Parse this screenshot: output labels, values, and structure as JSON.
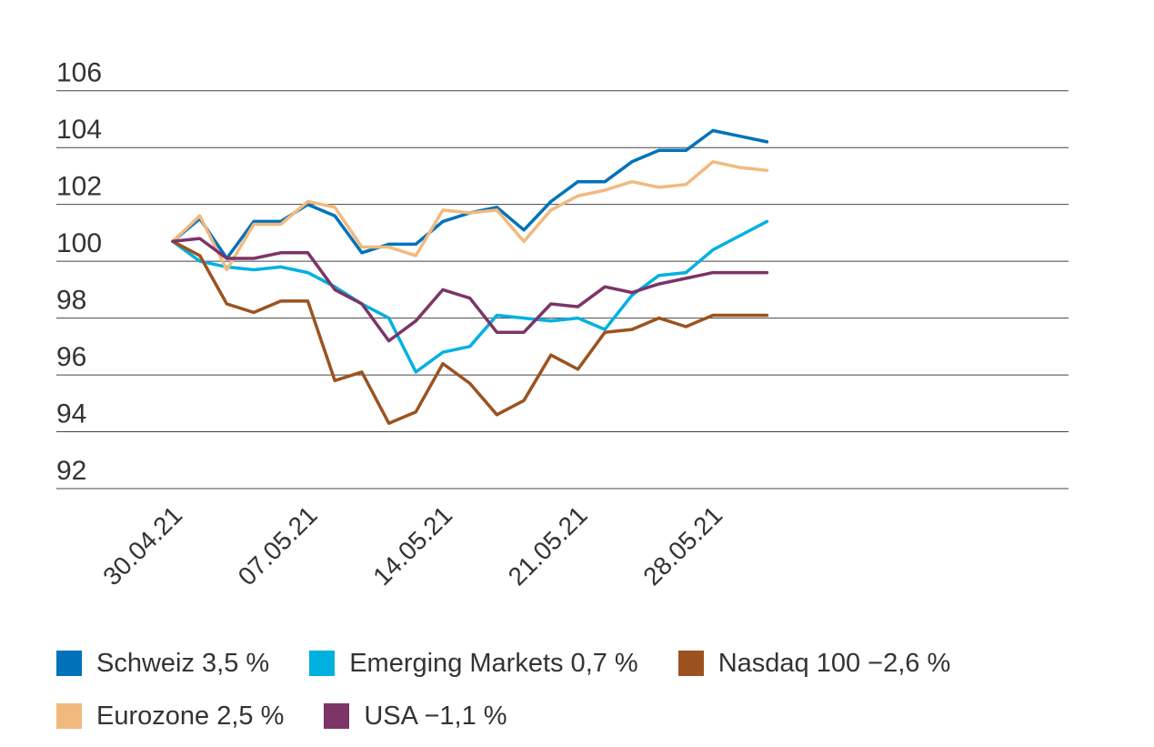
{
  "chart_data": {
    "type": "line",
    "x": [
      "30.04.21",
      "03.05.21",
      "04.05.21",
      "05.05.21",
      "06.05.21",
      "07.05.21",
      "10.05.21",
      "11.05.21",
      "12.05.21",
      "13.05.21",
      "14.05.21",
      "17.05.21",
      "18.05.21",
      "19.05.21",
      "20.05.21",
      "21.05.21",
      "24.05.21",
      "25.05.21",
      "26.05.21",
      "27.05.21",
      "28.05.21",
      "31.05.21",
      "01.06.21"
    ],
    "x_tick_labels": [
      "30.04.21",
      "07.05.21",
      "14.05.21",
      "21.05.21",
      "28.05.21"
    ],
    "y_ticks": [
      92,
      94,
      96,
      98,
      100,
      102,
      104,
      106
    ],
    "ylim": [
      91.3,
      106.7
    ],
    "grid": true,
    "legend_position": "bottom",
    "series": [
      {
        "name": "Schweiz 3,5 %",
        "color": "#0072bb",
        "values": [
          100.0,
          100.8,
          99.4,
          100.7,
          100.7,
          101.3,
          100.9,
          99.6,
          99.9,
          99.9,
          100.7,
          101.0,
          101.2,
          100.4,
          101.4,
          102.1,
          102.1,
          102.8,
          103.2,
          103.2,
          103.9,
          103.7,
          103.5
        ]
      },
      {
        "name": "Emerging Markets 0,7 %",
        "color": "#00b1e0",
        "values": [
          100.0,
          99.3,
          99.1,
          99.0,
          99.1,
          98.9,
          98.4,
          97.8,
          97.3,
          95.4,
          96.1,
          96.3,
          97.4,
          97.3,
          97.2,
          97.3,
          96.9,
          98.1,
          98.8,
          98.9,
          99.7,
          100.2,
          100.7
        ]
      },
      {
        "name": "Nasdaq 100 −2,6 %",
        "color": "#9c5220",
        "values": [
          100.0,
          99.5,
          97.8,
          97.5,
          97.9,
          97.9,
          95.1,
          95.4,
          93.6,
          94.0,
          95.7,
          95.0,
          93.9,
          94.4,
          96.0,
          95.5,
          96.8,
          96.9,
          97.3,
          97.0,
          97.4,
          97.4,
          97.4
        ]
      },
      {
        "name": "Eurozone 2,5 %",
        "color": "#f2b97e",
        "values": [
          100.0,
          100.9,
          99.0,
          100.6,
          100.6,
          101.4,
          101.2,
          99.8,
          99.8,
          99.5,
          101.1,
          101.0,
          101.1,
          100.0,
          101.1,
          101.6,
          101.8,
          102.1,
          101.9,
          102.0,
          102.8,
          102.6,
          102.5
        ]
      },
      {
        "name": "USA −1,1 %",
        "color": "#7d3467",
        "values": [
          100.0,
          100.1,
          99.4,
          99.4,
          99.6,
          99.6,
          98.3,
          97.8,
          96.5,
          97.2,
          98.3,
          98.0,
          96.8,
          96.8,
          97.8,
          97.7,
          98.4,
          98.2,
          98.5,
          98.7,
          98.9,
          98.9,
          98.9
        ]
      }
    ]
  },
  "legend": {
    "row1": [
      {
        "label": "Schweiz 3,5 %",
        "color": "#0072bb"
      },
      {
        "label": "Emerging Markets 0,7 %",
        "color": "#00b1e0"
      },
      {
        "label": "Nasdaq 100 −2,6 %",
        "color": "#9c5220"
      }
    ],
    "row2": [
      {
        "label": "Eurozone 2,5 %",
        "color": "#f2b97e"
      },
      {
        "label": "USA −1,1 %",
        "color": "#7d3467"
      }
    ]
  }
}
